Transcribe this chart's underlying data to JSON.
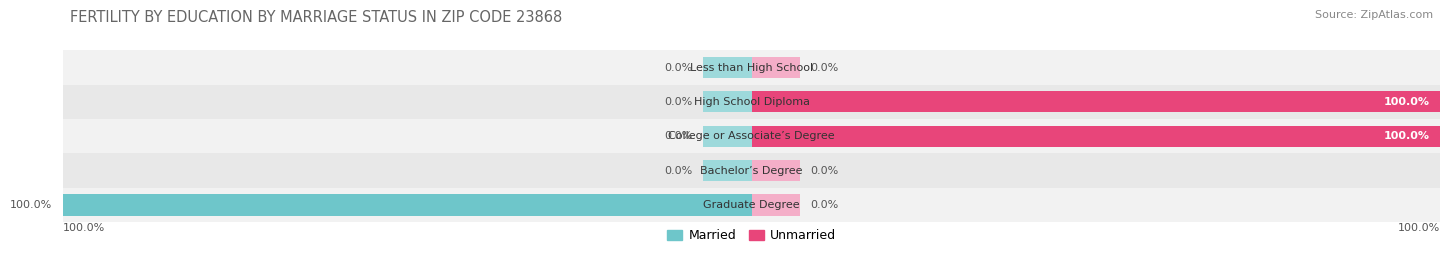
{
  "title": "FERTILITY BY EDUCATION BY MARRIAGE STATUS IN ZIP CODE 23868",
  "source": "Source: ZipAtlas.com",
  "categories": [
    "Less than High School",
    "High School Diploma",
    "College or Associate’s Degree",
    "Bachelor’s Degree",
    "Graduate Degree"
  ],
  "married": [
    0.0,
    0.0,
    0.0,
    0.0,
    100.0
  ],
  "unmarried": [
    0.0,
    100.0,
    100.0,
    0.0,
    0.0
  ],
  "married_color": "#6ec6ca",
  "unmarried_color_full": "#e8457a",
  "unmarried_color_small": "#f4aec8",
  "married_color_small": "#9dd9db",
  "row_bg_even": "#f2f2f2",
  "row_bg_odd": "#e8e8e8",
  "title_fontsize": 10.5,
  "source_fontsize": 8,
  "label_fontsize": 8,
  "category_fontsize": 8,
  "legend_fontsize": 9,
  "background_color": "#ffffff",
  "bar_height": 0.62,
  "stub_size": 7
}
